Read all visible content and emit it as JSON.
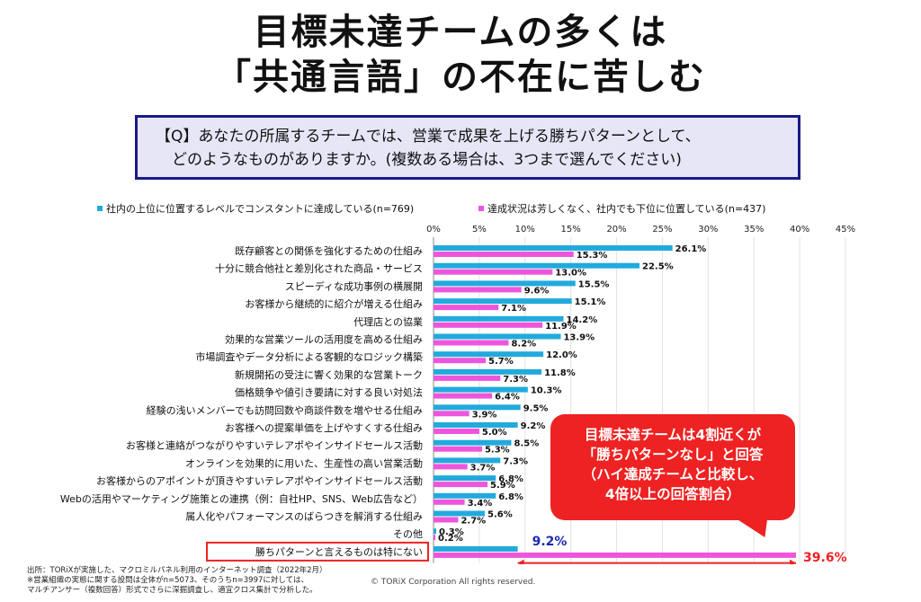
{
  "header": {
    "title_line1": "目標未達チームの多くは",
    "title_line2": "「共通言語」の不在に苦しむ"
  },
  "question": {
    "line1": "【Q】あなたの所属するチームでは、営業で成果を上げる勝ちパターンとして、",
    "line2": "どのようなものがありますか。(複数ある場合は、3つまで選んでください)"
  },
  "legend": {
    "series1": "社内の上位に位置するレベルでコンスタントに達成している(n=769)",
    "series2": "達成状況は芳しくなく、社内でも下位に位置している(n=437)"
  },
  "callout": {
    "line1": "目標未達チームは4割近くが",
    "line2": "「勝ちパターンなし」と回答",
    "line3": "（ハイ達成チームと比較し、",
    "line4": "4倍以上の回答割合）"
  },
  "footnote": {
    "line1": "出所：TORiXが実施した、マクロミルパネル利用のインターネット調査（2022年2月）",
    "line2": "※営業組織の実態に関する設問は全体がn=5073、そのうちn=3997に対しては、",
    "line3": "マルチアンサー（複数回答）形式でさらに深掘調査し、適宜クロス集計で分析した。"
  },
  "copyright": "© TORiX Corporation All rights reserved.",
  "colors": {
    "series1": "#22aadd",
    "series2": "#ee55dd",
    "highlight": "#ee2222",
    "accent_text": "#1a2ab0"
  },
  "chart_data": {
    "type": "bar",
    "orientation": "horizontal",
    "categories": [
      "既存顧客との関係を強化するための仕組み",
      "十分に競合他社と差別化された商品・サービス",
      "スピーディな成功事例の横展開",
      "お客様から継続的に紹介が増える仕組み",
      "代理店との協業",
      "効果的な営業ツールの活用度を高める仕組み",
      "市場調査やデータ分析による客観的なロジック構築",
      "新規開拓の受注に響く効果的な営業トーク",
      "価格競争や値引き要請に対する良い対処法",
      "経験の浅いメンバーでも訪問回数や商談件数を増やせる仕組み",
      "お客様への提案単価を上げやすくする仕組み",
      "お客様と連絡がつながりやすいテレアポやインサイドセールス活動",
      "オンラインを効果的に用いた、生産性の高い営業活動",
      "お客様からのアポイントが頂きやすいテレアポやインサイドセールス活動",
      "Webの活用やマーケティング施策との連携（例：自社HP、SNS、Web広告など）",
      "属人化やパフォーマンスのばらつきを解消する仕組み",
      "その他",
      "勝ちパターンと言えるものは特にない"
    ],
    "series": [
      {
        "name": "社内の上位に位置するレベルでコンスタントに達成している(n=769)",
        "values": [
          26.1,
          22.5,
          15.5,
          15.1,
          14.2,
          13.9,
          12.0,
          11.8,
          10.3,
          9.5,
          9.2,
          8.5,
          7.3,
          6.8,
          6.8,
          5.6,
          0.3,
          9.2
        ],
        "labels": [
          "26.1%",
          "22.5%",
          "15.5%",
          "15.1%",
          "14.2%",
          "13.9%",
          "12.0%",
          "11.8%",
          "10.3%",
          "9.5%",
          "9.2%",
          "8.5%",
          "7.3%",
          "6.8%",
          "6.8%",
          "5.6%",
          "0.3%",
          "9.2%"
        ]
      },
      {
        "name": "達成状況は芳しくなく、社内でも下位に位置している(n=437)",
        "values": [
          15.3,
          13.0,
          9.6,
          7.1,
          11.9,
          8.2,
          5.7,
          7.3,
          6.4,
          3.9,
          5.0,
          5.3,
          3.7,
          5.9,
          3.4,
          2.7,
          0.2,
          39.6
        ],
        "labels": [
          "15.3%",
          "13.0%",
          "9.6%",
          "7.1%",
          "11.9%",
          "8.2%",
          "5.7%",
          "7.3%",
          "6.4%",
          "3.9%",
          "5.0%",
          "5.3%",
          "3.7%",
          "5.9%",
          "3.4%",
          "2.7%",
          "0.2%",
          "39.6%"
        ]
      }
    ],
    "xlim": [
      0,
      45
    ],
    "xticks": [
      "0%",
      "5%",
      "10%",
      "15%",
      "20%",
      "25%",
      "30%",
      "35%",
      "40%",
      "45%"
    ],
    "grid": true,
    "highlighted_category": "勝ちパターンと言えるものは特にない"
  }
}
